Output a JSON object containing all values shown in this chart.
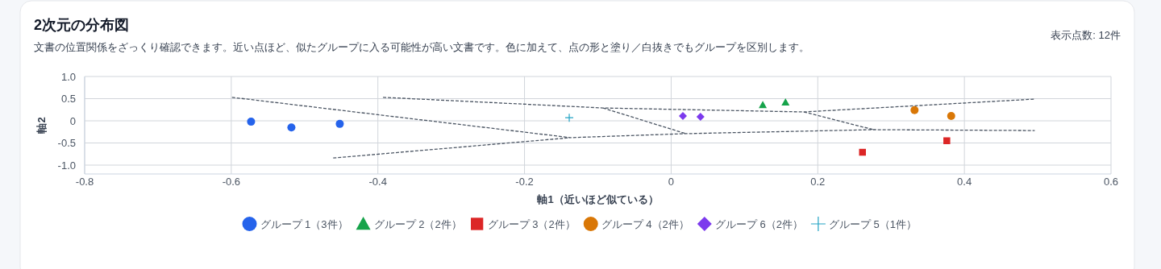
{
  "chart_data": {
    "type": "scatter",
    "title": "2次元の分布図",
    "subtitle": "文書の位置関係をざっくり確認できます。近い点ほど、似たグループに入る可能性が高い文書です。色に加えて、点の形と塗り／白抜きでもグループを区別します。",
    "annotations": [
      "表示点数: 12件"
    ],
    "xlabel": "軸1（近いほど似ている）",
    "ylabel": "軸2",
    "xlim": [
      -0.8,
      0.6
    ],
    "xticks": [
      {
        "value": -0.8,
        "label": "-0.8"
      },
      {
        "value": -0.6,
        "label": "-0.6"
      },
      {
        "value": -0.4,
        "label": "-0.4"
      },
      {
        "value": -0.2,
        "label": "-0.2"
      },
      0,
      {
        "value": 0.2,
        "label": "0.2"
      },
      {
        "value": 0.4,
        "label": "0.4"
      },
      {
        "value": 0.6,
        "label": "0.6"
      }
    ],
    "ylim": [
      -1.2,
      1.0
    ],
    "yticks": [
      {
        "value": 1.0,
        "label": "1.0"
      },
      {
        "value": 0.5,
        "label": "0.5"
      },
      0,
      {
        "value": -0.5,
        "label": "-0.5"
      },
      {
        "value": -1.0,
        "label": "-1.0"
      }
    ],
    "grid": true,
    "legend": "bottom",
    "series": [
      {
        "name": "グループ 1（3件）",
        "color": "#2563eb",
        "marker": "circle",
        "x": [
          -0.573,
          -0.518,
          -0.452
        ],
        "values": [
          -0.02,
          -0.15,
          -0.07
        ]
      },
      {
        "name": "グループ 2（2件）",
        "color": "#16a34a",
        "marker": "triangle",
        "x": [
          0.125,
          0.156
        ],
        "values": [
          0.36,
          0.42
        ]
      },
      {
        "name": "グループ 3（2件）",
        "color": "#dc2626",
        "marker": "square",
        "x": [
          0.261,
          0.376
        ],
        "values": [
          -0.71,
          -0.45
        ]
      },
      {
        "name": "グループ 4（2件）",
        "color": "#d97706",
        "marker": "circle",
        "x": [
          0.332,
          0.382
        ],
        "values": [
          0.24,
          0.11
        ]
      },
      {
        "name": "グループ 6（2件）",
        "color": "#7c3aed",
        "marker": "diamond",
        "x": [
          0.016,
          0.04
        ],
        "values": [
          0.11,
          0.09
        ]
      },
      {
        "name": "グループ 5（1件）",
        "color": "#22a3c4",
        "marker": "cross",
        "x": [
          -0.139
        ],
        "values": [
          0.07
        ]
      },
      {
        "type": "line",
        "color": "#4b5563",
        "line_style": "dashed",
        "x": [
          -0.599,
          -0.137,
          0.02,
          0.276,
          0.496,
          null,
          -0.461,
          -0.137,
          null,
          -0.393,
          -0.093,
          0.181,
          0.496,
          null,
          -0.093,
          0.02,
          null,
          0.181,
          0.276
        ],
        "values": [
          0.53,
          -0.38,
          -0.29,
          -0.2,
          -0.22,
          null,
          -0.84,
          -0.38,
          null,
          0.53,
          0.29,
          0.2,
          0.49,
          null,
          0.29,
          -0.29,
          null,
          0.2,
          -0.2
        ]
      }
    ]
  }
}
